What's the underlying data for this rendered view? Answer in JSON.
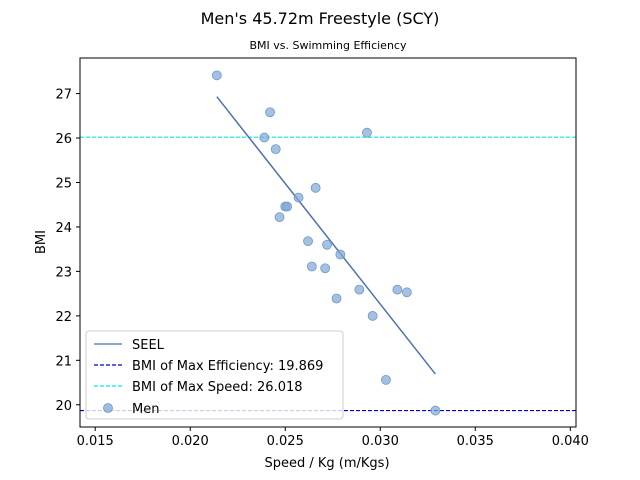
{
  "chart_data": {
    "type": "scatter",
    "title": "Men's 45.72m Freestyle (SCY)",
    "subtitle": "BMI vs. Swimming Efficiency",
    "xlabel": "Speed / Kg (m/Kgs)",
    "ylabel": "BMI",
    "xlim": [
      0.0142,
      0.0403
    ],
    "ylim": [
      19.5,
      27.8
    ],
    "xticks": [
      0.015,
      0.02,
      0.025,
      0.03,
      0.035,
      0.04
    ],
    "xtick_labels": [
      "0.015",
      "0.020",
      "0.025",
      "0.030",
      "0.035",
      "0.040"
    ],
    "yticks": [
      20,
      21,
      22,
      23,
      24,
      25,
      26,
      27
    ],
    "ytick_labels": [
      "20",
      "21",
      "22",
      "23",
      "24",
      "25",
      "26",
      "27"
    ],
    "grid": false,
    "legend_position": "lower-left",
    "series": [
      {
        "name": "Men",
        "kind": "scatter",
        "color": "#7fa7d5",
        "points": [
          [
            0.0214,
            27.41
          ],
          [
            0.0242,
            26.58
          ],
          [
            0.0239,
            26.01
          ],
          [
            0.0245,
            25.75
          ],
          [
            0.0293,
            26.12
          ],
          [
            0.0266,
            24.88
          ],
          [
            0.0257,
            24.66
          ],
          [
            0.025,
            24.46
          ],
          [
            0.0251,
            24.46
          ],
          [
            0.0247,
            24.22
          ],
          [
            0.0262,
            23.68
          ],
          [
            0.0272,
            23.6
          ],
          [
            0.0279,
            23.38
          ],
          [
            0.0264,
            23.11
          ],
          [
            0.0271,
            23.07
          ],
          [
            0.0289,
            22.59
          ],
          [
            0.0309,
            22.59
          ],
          [
            0.0314,
            22.53
          ],
          [
            0.0277,
            22.39
          ],
          [
            0.0296,
            22.0
          ],
          [
            0.0303,
            20.56
          ],
          [
            0.0329,
            19.87
          ]
        ]
      },
      {
        "name": "SEEL",
        "kind": "line",
        "color": "#4c72b0",
        "x": [
          0.0214,
          0.0329
        ],
        "y": [
          26.93,
          20.69
        ]
      },
      {
        "name": "BMI of Max Efficiency: 19.869",
        "kind": "hline",
        "color": "#0000cc",
        "y": 19.869
      },
      {
        "name": "BMI of Max Speed: 26.018",
        "kind": "hline",
        "color": "#00e5ee",
        "y": 26.018
      }
    ],
    "legend": [
      "SEEL",
      "BMI of Max Efficiency: 19.869",
      "BMI of Max Speed: 26.018",
      "Men"
    ]
  }
}
